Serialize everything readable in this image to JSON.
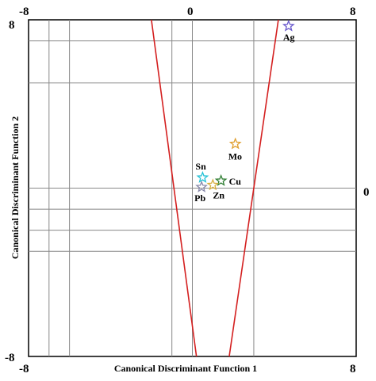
{
  "chart_data": {
    "type": "scatter",
    "xlabel": "Canonical Discriminant Function 1",
    "ylabel": "Canonical Discriminant Function 2",
    "xlim": [
      -8,
      8
    ],
    "ylim": [
      -8,
      8
    ],
    "x_tick_labels_top": [
      "-8",
      "0",
      "8"
    ],
    "x_tick_labels_bottom": [
      "-8",
      "-8",
      "8"
    ],
    "y_tick_labels_left": [
      "8",
      "-8"
    ],
    "y_tick_labels_right": [
      "0"
    ],
    "grid": true,
    "grid_x": [
      -7,
      -6,
      -1,
      0,
      3
    ],
    "grid_y": [
      7,
      5,
      0,
      -1,
      -2,
      -3
    ],
    "boundary_lines": [
      {
        "color": "#d42020",
        "points": [
          [
            -2,
            8
          ],
          [
            0.2,
            -8
          ]
        ]
      },
      {
        "color": "#d42020",
        "points": [
          [
            4.2,
            8
          ],
          [
            1.8,
            -8
          ]
        ]
      }
    ],
    "points": [
      {
        "label": "Ag",
        "x": 4.7,
        "y": 7.7,
        "color": "#6a5acd"
      },
      {
        "label": "Mo",
        "x": 2.1,
        "y": 2.1,
        "color": "#e0a030"
      },
      {
        "label": "Sn",
        "x": 0.5,
        "y": 0.5,
        "color": "#22c1d6"
      },
      {
        "label": "Cu",
        "x": 1.4,
        "y": 0.35,
        "color": "#2e7d32"
      },
      {
        "label": "Zn",
        "x": 1.0,
        "y": 0.15,
        "color": "#d6b040"
      },
      {
        "label": "Pb",
        "x": 0.45,
        "y": 0.05,
        "color": "#8888aa"
      }
    ]
  }
}
